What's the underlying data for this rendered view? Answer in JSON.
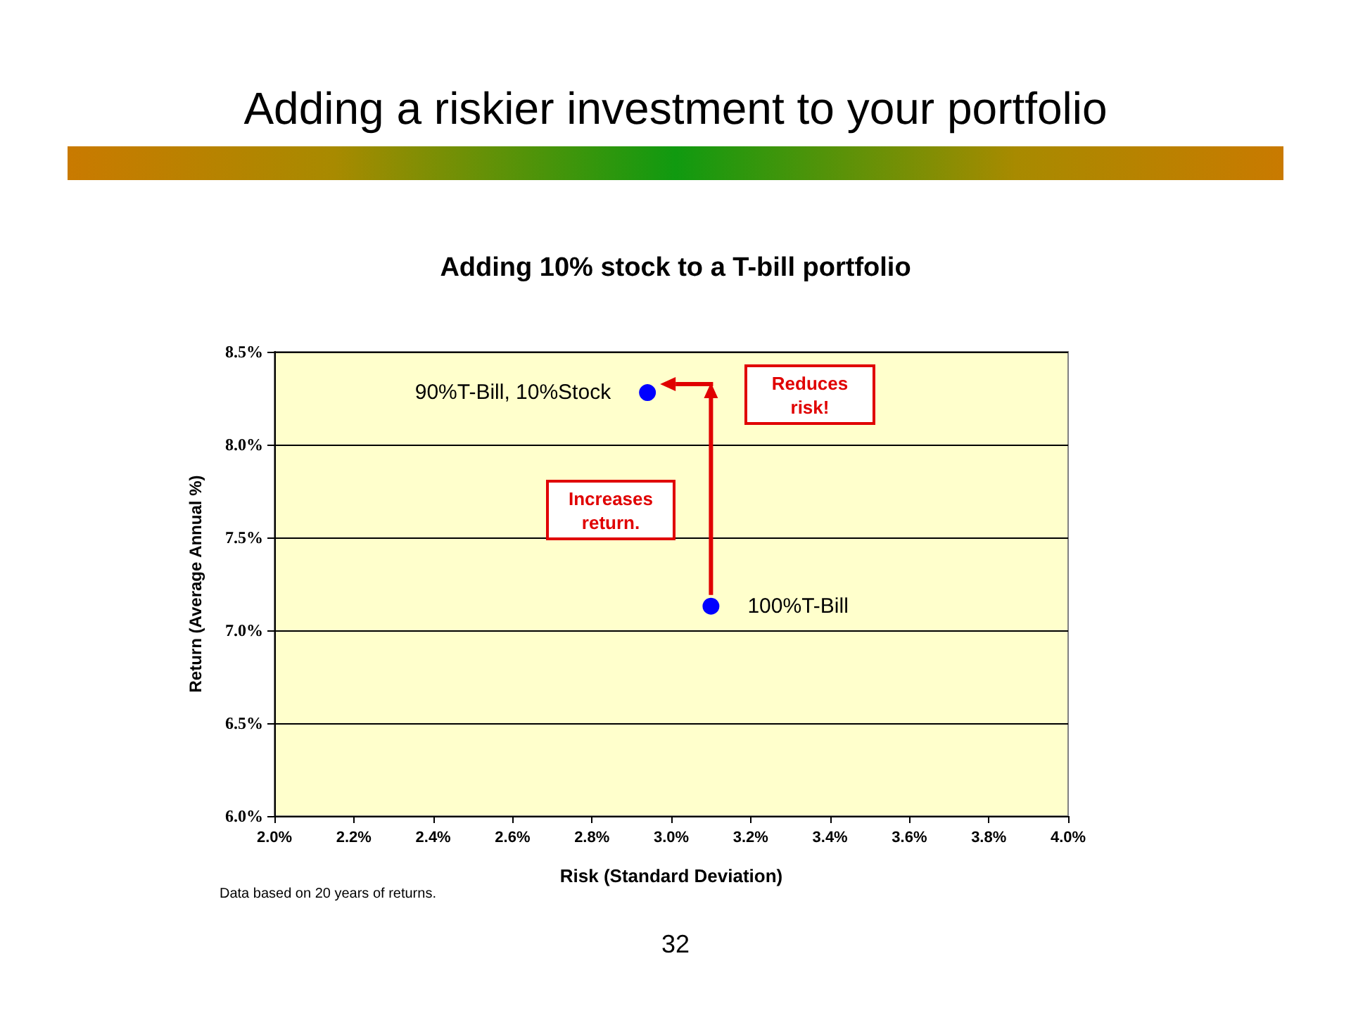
{
  "chart_data": {
    "type": "scatter",
    "title": "Adding a riskier investment to your portfolio",
    "subtitle": "Adding 10% stock to a T-bill portfolio",
    "xlabel": "Risk (Standard Deviation)",
    "ylabel": "Return (Average Annual %)",
    "annotations": [
      "Increases return.",
      "Reduces risk!",
      "Data based on 20 years of returns.",
      "32"
    ],
    "series": [
      {
        "name": "90%T-Bill, 10%Stock",
        "color": "#0000ff",
        "x": [
          2.94
        ],
        "values": [
          8.28
        ]
      },
      {
        "name": "100%T-Bill",
        "color": "#0000ff",
        "x": [
          3.1
        ],
        "values": [
          7.13
        ]
      }
    ],
    "xlim": [
      2,
      4
    ],
    "xticks": [
      {
        "value": 2,
        "label": "2.0%"
      },
      {
        "value": 2.2,
        "label": "2.2%"
      },
      {
        "value": 2.4,
        "label": "2.4%"
      },
      {
        "value": 2.6,
        "label": "2.6%"
      },
      {
        "value": 2.8,
        "label": "2.8%"
      },
      {
        "value": 3,
        "label": "3.0%"
      },
      {
        "value": 3.2,
        "label": "3.2%"
      },
      {
        "value": 3.4,
        "label": "3.4%"
      },
      {
        "value": 3.6,
        "label": "3.6%"
      },
      {
        "value": 3.8,
        "label": "3.8%"
      },
      {
        "value": 4,
        "label": "4.0%"
      }
    ],
    "ylim": [
      6,
      8.5
    ],
    "yticks": [
      {
        "value": 6,
        "label": "6.0%"
      },
      {
        "value": 6.5,
        "label": "6.5%"
      },
      {
        "value": 7,
        "label": "7.0%"
      },
      {
        "value": 7.5,
        "label": "7.5%"
      },
      {
        "value": 8,
        "label": "8.0%"
      },
      {
        "value": 8.5,
        "label": "8.5%"
      }
    ],
    "grid": "y",
    "marker": "circle"
  }
}
